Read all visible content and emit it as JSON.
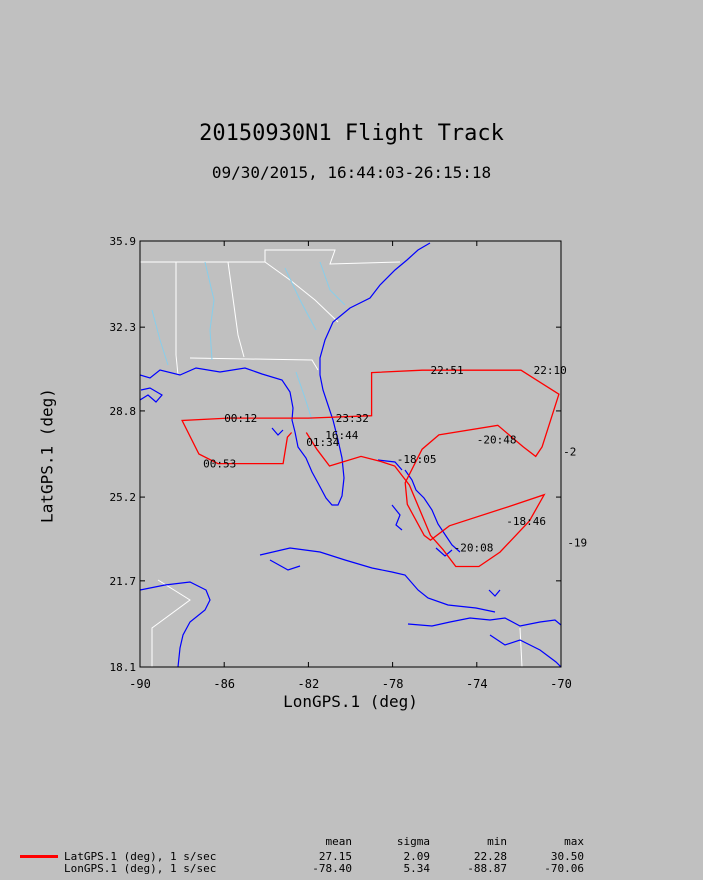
{
  "title": "20150930N1 Flight Track",
  "subtitle": "09/30/2015, 16:44:03-26:15:18",
  "axes": {
    "xlabel": "LonGPS.1 (deg)",
    "ylabel": "LatGPS.1 (deg)",
    "xlim": [
      -90,
      -70
    ],
    "ylim": [
      18.1,
      35.9
    ],
    "xticks": [
      "-90",
      "-86",
      "-82",
      "-78",
      "-74",
      "-70"
    ],
    "yticks": [
      "35.9",
      "32.3",
      "28.8",
      "25.2",
      "21.7",
      "18.1"
    ]
  },
  "colors": {
    "track": "#ff0000",
    "coast": "#0000ff",
    "border": "#ffffff",
    "river": "#87ceeb"
  },
  "chart_data": {
    "type": "line",
    "title": "20150930N1 Flight Track",
    "subtitle": "09/30/2015, 16:44:03-26:15:18",
    "xlabel": "LonGPS.1 (deg)",
    "ylabel": "LatGPS.1 (deg)",
    "xlim": [
      -90,
      -70
    ],
    "ylim": [
      18.1,
      35.9
    ],
    "grid": false,
    "track": [
      [
        -82.1,
        27.9
      ],
      [
        -81.6,
        27.2
      ],
      [
        -81.0,
        26.5
      ],
      [
        -79.5,
        26.9
      ],
      [
        -78.6,
        26.7
      ],
      [
        -77.9,
        26.5
      ],
      [
        -77.2,
        25.7
      ],
      [
        -76.2,
        23.6
      ],
      [
        -75.6,
        23.0
      ],
      [
        -75.0,
        22.3
      ],
      [
        -73.9,
        22.3
      ],
      [
        -72.9,
        22.9
      ],
      [
        -71.5,
        24.2
      ],
      [
        -70.8,
        25.3
      ],
      [
        -72.5,
        24.8
      ],
      [
        -75.3,
        24.0
      ],
      [
        -76.2,
        23.4
      ],
      [
        -76.5,
        23.6
      ],
      [
        -77.3,
        24.9
      ],
      [
        -77.4,
        25.8
      ],
      [
        -76.6,
        27.2
      ],
      [
        -75.8,
        27.8
      ],
      [
        -73.0,
        28.2
      ],
      [
        -71.8,
        27.3
      ],
      [
        -71.2,
        26.9
      ],
      [
        -70.9,
        27.3
      ],
      [
        -70.1,
        29.5
      ],
      [
        -71.9,
        30.5
      ],
      [
        -76.6,
        30.5
      ],
      [
        -79.0,
        30.4
      ],
      [
        -79.0,
        28.6
      ],
      [
        -82.0,
        28.5
      ],
      [
        -85.8,
        28.5
      ],
      [
        -88.0,
        28.4
      ],
      [
        -87.2,
        27.0
      ],
      [
        -86.3,
        26.6
      ],
      [
        -83.2,
        26.6
      ],
      [
        -83.0,
        27.7
      ],
      [
        -82.8,
        27.9
      ]
    ],
    "time_labels": [
      {
        "text": "22:51",
        "lon": -76.2,
        "lat": 30.5
      },
      {
        "text": "22:10",
        "lon": -71.3,
        "lat": 30.5
      },
      {
        "text": "00:12",
        "lon": -86.0,
        "lat": 28.5
      },
      {
        "text": "23:32",
        "lon": -80.7,
        "lat": 28.5
      },
      {
        "text": "16:44",
        "lon": -81.2,
        "lat": 27.8
      },
      {
        "text": "01:34",
        "lon": -82.1,
        "lat": 27.5
      },
      {
        "text": "-20:48",
        "lon": -74.0,
        "lat": 27.6
      },
      {
        "text": "-2",
        "lon": -69.9,
        "lat": 27.1
      },
      {
        "text": "00:53",
        "lon": -87.0,
        "lat": 26.6
      },
      {
        "text": "-18:05",
        "lon": -77.8,
        "lat": 26.8
      },
      {
        "text": "-18:46",
        "lon": -72.6,
        "lat": 24.2
      },
      {
        "text": "-19",
        "lon": -69.7,
        "lat": 23.3
      },
      {
        "text": "-20:08",
        "lon": -75.1,
        "lat": 23.1
      }
    ]
  },
  "stats": {
    "headers": [
      "mean",
      "sigma",
      "min",
      "max"
    ],
    "rows": [
      {
        "label": "LatGPS.1 (deg), 1 s/sec",
        "mean": "27.15",
        "sigma": "2.09",
        "min": "22.28",
        "max": "30.50",
        "line": true
      },
      {
        "label": "LonGPS.1 (deg), 1 s/sec",
        "mean": "-78.40",
        "sigma": "5.34",
        "min": "-88.87",
        "max": "-70.06",
        "line": false
      }
    ]
  }
}
